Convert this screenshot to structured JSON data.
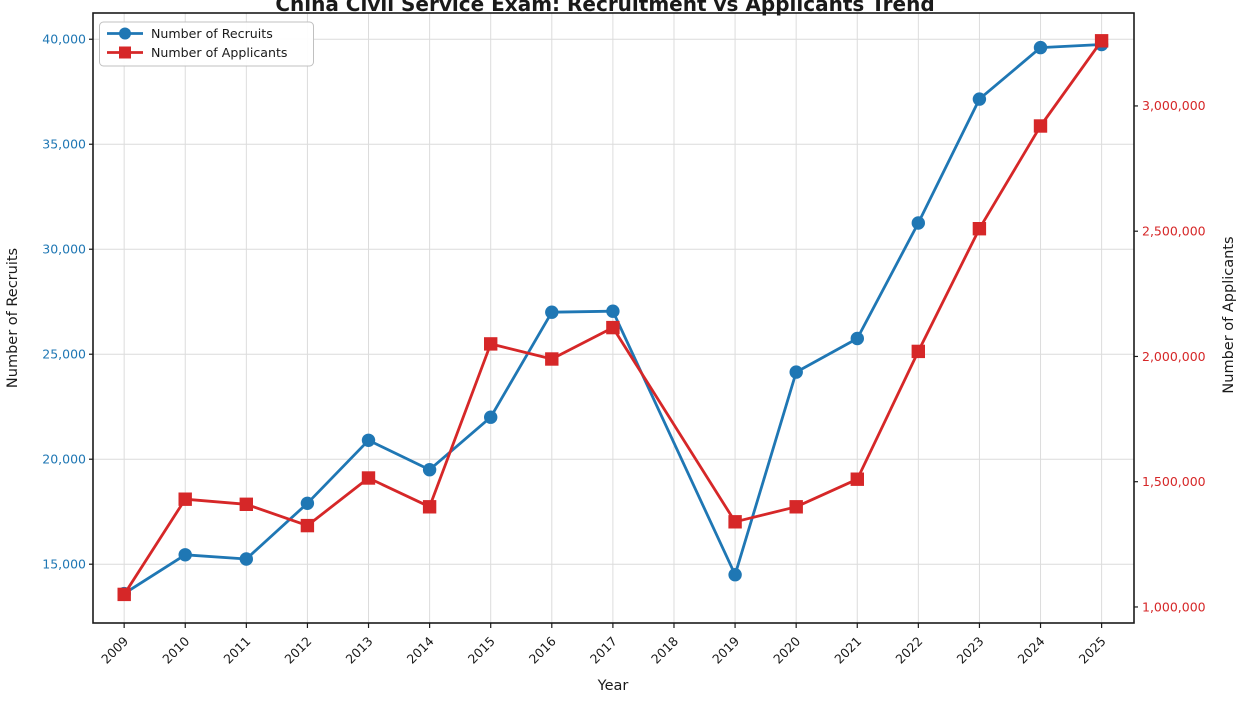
{
  "chart_data": {
    "type": "line",
    "title": "China Civil Service Exam: Recruitment vs Applicants Trend",
    "x_axis": {
      "label": "Year",
      "tick_labels": [
        "2009",
        "2010",
        "2011",
        "2012",
        "2013",
        "2014",
        "2015",
        "2016",
        "2017",
        "2018",
        "2019",
        "2020",
        "2021",
        "2022",
        "2023",
        "2024",
        "2025"
      ],
      "ticks": [
        2009,
        2010,
        2011,
        2012,
        2013,
        2014,
        2015,
        2016,
        2017,
        2018,
        2019,
        2020,
        2021,
        2022,
        2023,
        2024,
        2025
      ],
      "lim": [
        2008.49,
        2025.53
      ],
      "tick_rotation_deg": 45
    },
    "left_axis": {
      "label": "Number of Recruits",
      "color": "#1f77b4",
      "ticks": [
        15000,
        20000,
        25000,
        30000,
        35000,
        40000
      ],
      "tick_labels": [
        "15,000",
        "20,000",
        "25,000",
        "30,000",
        "35,000",
        "40,000"
      ],
      "lim": [
        12200,
        41250
      ]
    },
    "right_axis": {
      "label": "Number of Applicants",
      "color": "#d62728",
      "ticks": [
        1000000,
        1500000,
        2000000,
        2500000,
        3000000
      ],
      "tick_labels": [
        "1,000,000",
        "1,500,000",
        "2,000,000",
        "2,500,000",
        "3,000,000"
      ],
      "lim": [
        936000,
        3371000
      ]
    },
    "grid": {
      "on": true,
      "color": "#dcdcdc"
    },
    "legend": {
      "position": "upper-left",
      "border_color": "#c0c0c0",
      "background": "#ffffff"
    },
    "note": "No data point plotted for 2018; lines connect 2017 directly to 2019.",
    "series": [
      {
        "name": "Number of Recruits",
        "axis": "left",
        "color": "#1f77b4",
        "marker": "circle",
        "x": [
          2009,
          2010,
          2011,
          2012,
          2013,
          2014,
          2015,
          2016,
          2017,
          2019,
          2020,
          2021,
          2022,
          2023,
          2024,
          2025
        ],
        "values": [
          13600,
          15450,
          15250,
          17900,
          20900,
          19500,
          22000,
          27000,
          27050,
          14500,
          24150,
          25750,
          31250,
          37150,
          39600,
          39750
        ]
      },
      {
        "name": "Number of Applicants",
        "axis": "right",
        "color": "#d62728",
        "marker": "square",
        "x": [
          2009,
          2010,
          2011,
          2012,
          2013,
          2014,
          2015,
          2016,
          2017,
          2019,
          2020,
          2021,
          2022,
          2023,
          2024,
          2025
        ],
        "values": [
          1050000,
          1430000,
          1410000,
          1325000,
          1515000,
          1400000,
          2050000,
          1990000,
          2115000,
          1340000,
          1400000,
          1510000,
          2020000,
          2510000,
          2920000,
          3260000
        ]
      }
    ]
  }
}
